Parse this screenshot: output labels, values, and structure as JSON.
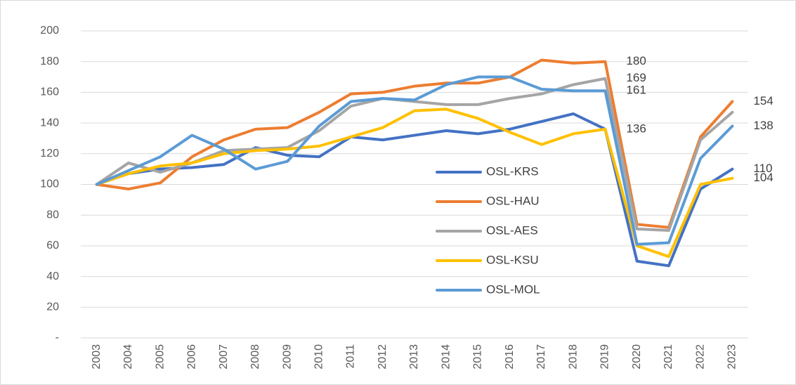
{
  "chart_data": {
    "type": "line",
    "categories": [
      "2003",
      "2004",
      "2005",
      "2006",
      "2007",
      "2008",
      "2009",
      "2010",
      "2011",
      "2012",
      "2013",
      "2014",
      "2015",
      "2016",
      "2017",
      "2018",
      "2019",
      "2020",
      "2021",
      "2022",
      "2023"
    ],
    "series": [
      {
        "name": "OSL-KRS",
        "color": "#4472c4",
        "values": [
          100,
          107,
          110,
          111,
          113,
          124,
          119,
          118,
          131,
          129,
          132,
          135,
          133,
          136,
          141,
          146,
          136,
          50,
          47,
          97,
          110
        ],
        "value_labels": [
          null,
          null,
          null,
          null,
          null,
          null,
          null,
          null,
          null,
          null,
          null,
          null,
          null,
          null,
          null,
          null,
          "136",
          null,
          null,
          null,
          "110"
        ]
      },
      {
        "name": "OSL-HAU",
        "color": "#ed7d31",
        "values": [
          100,
          97,
          101,
          118,
          129,
          136,
          137,
          147,
          159,
          160,
          164,
          166,
          166,
          170,
          181,
          179,
          180,
          74,
          72,
          131,
          154
        ],
        "value_labels": [
          null,
          null,
          null,
          null,
          null,
          null,
          null,
          null,
          null,
          null,
          null,
          null,
          null,
          null,
          null,
          null,
          "180",
          null,
          null,
          null,
          "154"
        ]
      },
      {
        "name": "OSL-AES",
        "color": "#a5a5a5",
        "values": [
          100,
          114,
          108,
          114,
          122,
          123,
          124,
          135,
          151,
          156,
          154,
          152,
          152,
          156,
          159,
          165,
          169,
          71,
          70,
          129,
          147
        ],
        "value_labels": [
          null,
          null,
          null,
          null,
          null,
          null,
          null,
          null,
          null,
          null,
          null,
          null,
          null,
          null,
          null,
          null,
          "169",
          null,
          null,
          null,
          null
        ]
      },
      {
        "name": "OSL-KSU",
        "color": "#ffc000",
        "values": [
          100,
          107,
          112,
          114,
          120,
          122,
          123,
          125,
          131,
          137,
          148,
          149,
          143,
          134,
          126,
          133,
          136,
          60,
          53,
          100,
          104
        ],
        "value_labels": [
          null,
          null,
          null,
          null,
          null,
          null,
          null,
          null,
          null,
          null,
          null,
          null,
          null,
          null,
          null,
          null,
          null,
          null,
          null,
          null,
          "104"
        ]
      },
      {
        "name": "OSL-MOL",
        "color": "#5b9bd5",
        "values": [
          100,
          109,
          118,
          132,
          123,
          110,
          115,
          138,
          154,
          156,
          155,
          165,
          170,
          170,
          162,
          161,
          161,
          61,
          62,
          117,
          138
        ],
        "value_labels": [
          null,
          null,
          null,
          null,
          null,
          null,
          null,
          null,
          null,
          null,
          null,
          null,
          null,
          null,
          null,
          null,
          "161",
          null,
          null,
          null,
          "138"
        ]
      }
    ],
    "ylim": [
      0,
      200
    ],
    "yticks": [
      {
        "value": 0,
        "label": "-"
      },
      20,
      40,
      60,
      80,
      100,
      120,
      140,
      160,
      180,
      200
    ],
    "grid": true
  }
}
